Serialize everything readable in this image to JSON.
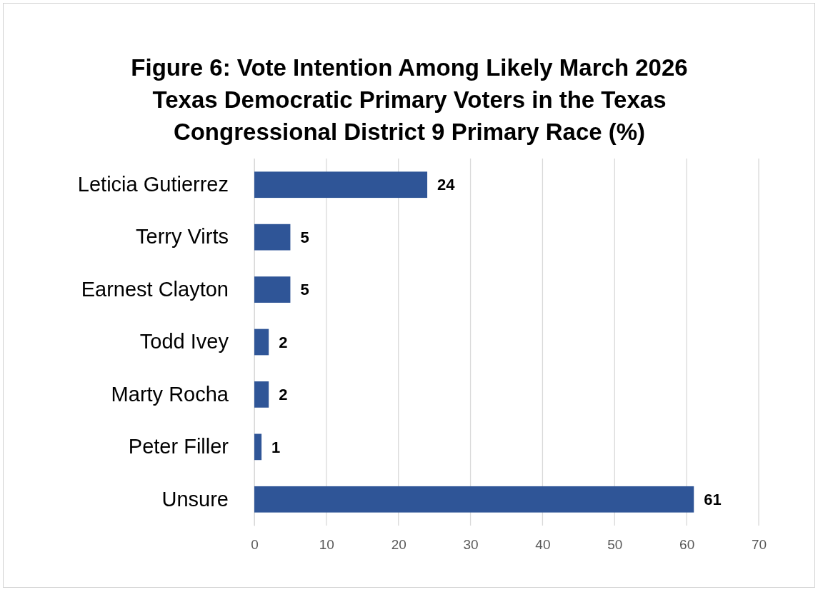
{
  "chart_data": {
    "type": "bar",
    "orientation": "horizontal",
    "title": "Figure 6: Vote Intention Among Likely March 2026 Texas Democratic Primary Voters in the Texas Congressional District 9 Primary Race (%)",
    "categories": [
      "Leticia Gutierrez",
      "Terry Virts",
      "Earnest Clayton",
      "Todd Ivey",
      "Marty Rocha",
      "Peter Filler",
      "Unsure"
    ],
    "values": [
      24,
      5,
      5,
      2,
      2,
      1,
      61
    ],
    "color": "#2f5597",
    "xlim": [
      0,
      70
    ],
    "xticks": [
      0,
      10,
      20,
      30,
      40,
      50,
      60,
      70
    ],
    "grid": "x",
    "data_labels": true
  }
}
